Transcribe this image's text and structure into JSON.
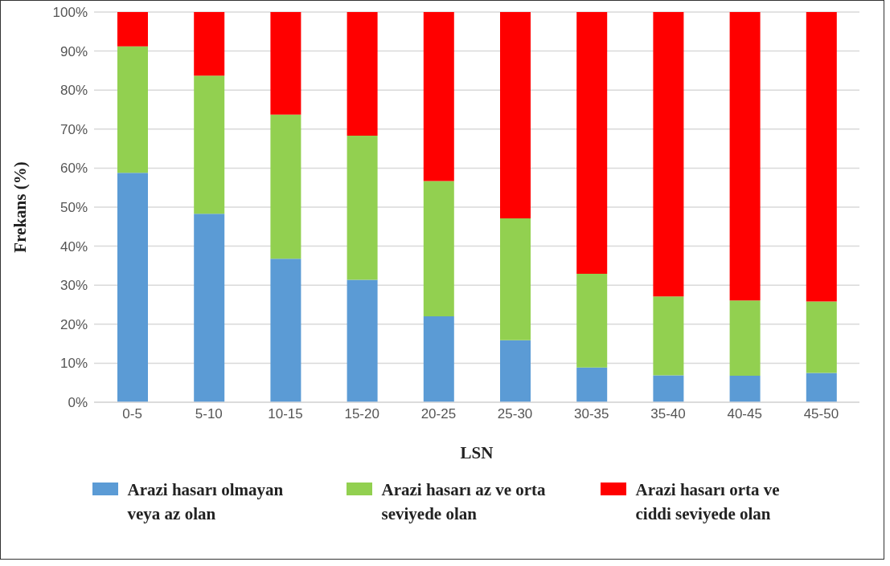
{
  "chart_data": {
    "type": "bar",
    "stacked": true,
    "xlabel": "LSN",
    "ylabel": "Frekans (%)",
    "categories": [
      "0-5",
      "5-10",
      "10-15",
      "15-20",
      "20-25",
      "25-30",
      "30-35",
      "35-40",
      "40-45",
      "45-50"
    ],
    "series": [
      {
        "name": "Arazi hasarı olmayan veya az olan",
        "color": "#5b9bd5",
        "values": [
          58.8,
          48.3,
          36.8,
          31.4,
          22.0,
          15.9,
          8.9,
          6.9,
          6.8,
          7.5
        ]
      },
      {
        "name": "Arazi hasarı az ve orta seviyede olan",
        "color": "#92d050",
        "values": [
          32.4,
          35.4,
          36.9,
          36.9,
          34.7,
          31.2,
          24.0,
          20.2,
          19.3,
          18.3
        ]
      },
      {
        "name": "Arazi hasarı orta ve ciddi seviyede olan",
        "color": "#ff0000",
        "values": [
          8.8,
          16.3,
          26.3,
          31.7,
          43.3,
          52.9,
          67.1,
          72.9,
          73.9,
          74.2
        ]
      }
    ],
    "ylim": [
      0,
      100
    ],
    "yticks": [
      {
        "value": 0,
        "label": "0%"
      },
      {
        "value": 10,
        "label": "10%"
      },
      {
        "value": 20,
        "label": "20%"
      },
      {
        "value": 30,
        "label": "30%"
      },
      {
        "value": 40,
        "label": "40%"
      },
      {
        "value": 50,
        "label": "50%"
      },
      {
        "value": 60,
        "label": "60%"
      },
      {
        "value": 70,
        "label": "70%"
      },
      {
        "value": 80,
        "label": "80%"
      },
      {
        "value": 90,
        "label": "90%"
      },
      {
        "value": 100,
        "label": "100%"
      }
    ],
    "grid": "y",
    "legend": "bottom"
  }
}
